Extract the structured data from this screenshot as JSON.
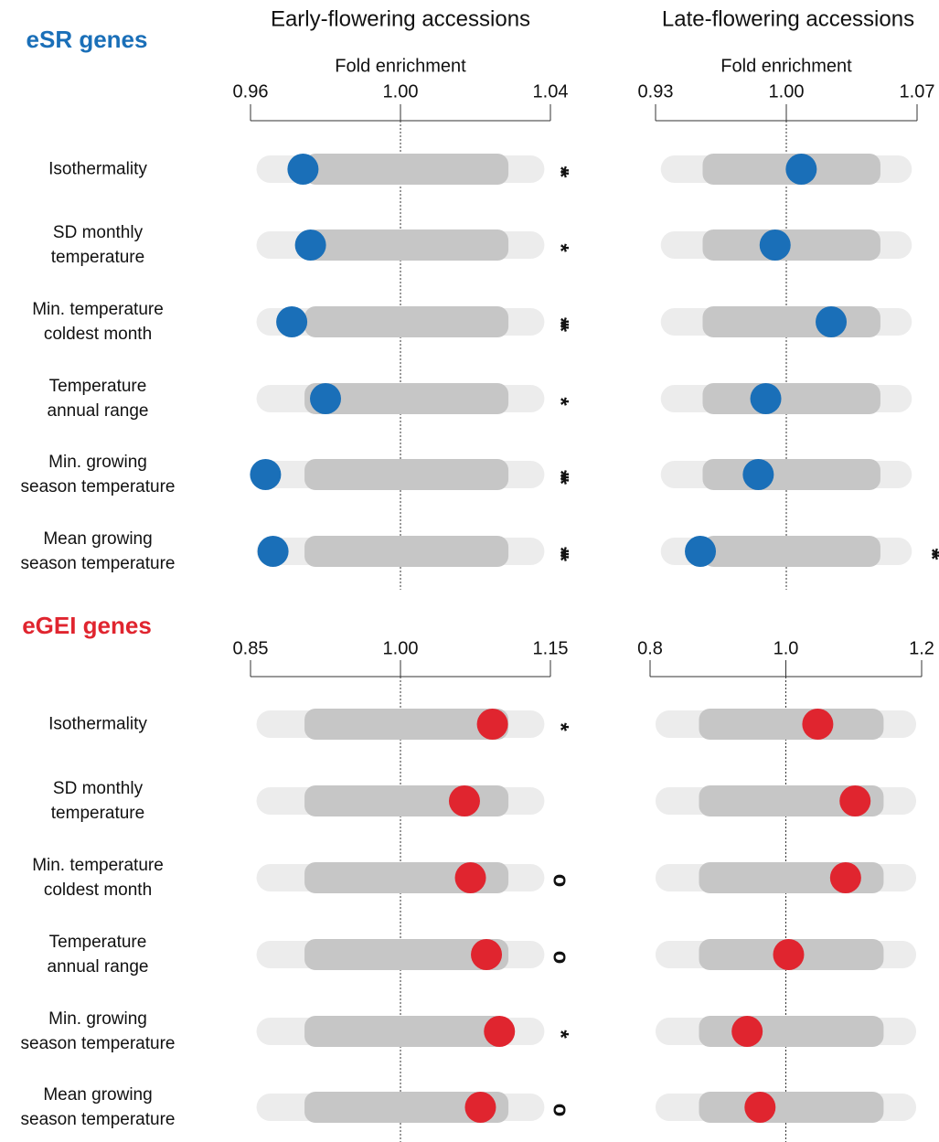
{
  "column_titles": [
    "Early-flowering accessions",
    "Late-flowering accessions"
  ],
  "chart_data": [
    {
      "type": "dot",
      "group": "eSR genes",
      "group_color": "#1a6fb8",
      "xlabel": "Fold enrichment",
      "xlim": [
        0.96,
        1.04
      ],
      "xticks": [
        0.96,
        {
          "value": 1,
          "label": "1.00"
        },
        1.04
      ],
      "categories": [
        "Isothermality",
        "SD monthly\ntemperature",
        "Min. temperature\ncoldest month",
        "Temperature\nannual range",
        "Min. growing\nseason temperature",
        "Mean growing\nseason temperature"
      ],
      "values": [
        0.974,
        0.976,
        0.971,
        0.98,
        0.964,
        0.966
      ],
      "color": "#1a6fb8",
      "significance": [
        "**",
        "*",
        "***",
        "*",
        "***",
        "***"
      ]
    },
    {
      "type": "dot",
      "xlabel": "Fold enrichment",
      "xlim": [
        0.93,
        1.07
      ],
      "xticks": [
        0.93,
        {
          "value": 1,
          "label": "1.00"
        },
        1.07
      ],
      "values": [
        1.008,
        0.994,
        1.024,
        0.989,
        0.985,
        0.954
      ],
      "color": "#1a6fb8",
      "significance": [
        null,
        null,
        null,
        null,
        null,
        "**"
      ]
    },
    {
      "type": "dot",
      "group": "eGEI genes",
      "group_color": "#e0252f",
      "xlim": [
        0.85,
        1.15
      ],
      "xticks": [
        0.85,
        {
          "value": 1,
          "label": "1.00"
        },
        1.15
      ],
      "categories": [
        "Isothermality",
        "SD monthly\ntemperature",
        "Min. temperature\ncoldest month",
        "Temperature\nannual range",
        "Min. growing\nseason temperature",
        "Mean growing\nseason temperature"
      ],
      "values": [
        1.092,
        1.064,
        1.07,
        1.086,
        1.099,
        1.08
      ],
      "color": "#e0252f",
      "significance": [
        "*",
        null,
        "o",
        "o",
        "*",
        "o"
      ]
    },
    {
      "type": "dot",
      "xlim": [
        0.8,
        1.2
      ],
      "xticks": [
        0.8,
        {
          "value": 1,
          "label": "1.0"
        },
        1.2
      ],
      "values": [
        1.047,
        1.102,
        1.088,
        1.004,
        0.943,
        0.962
      ],
      "color": "#e0252f"
    }
  ]
}
